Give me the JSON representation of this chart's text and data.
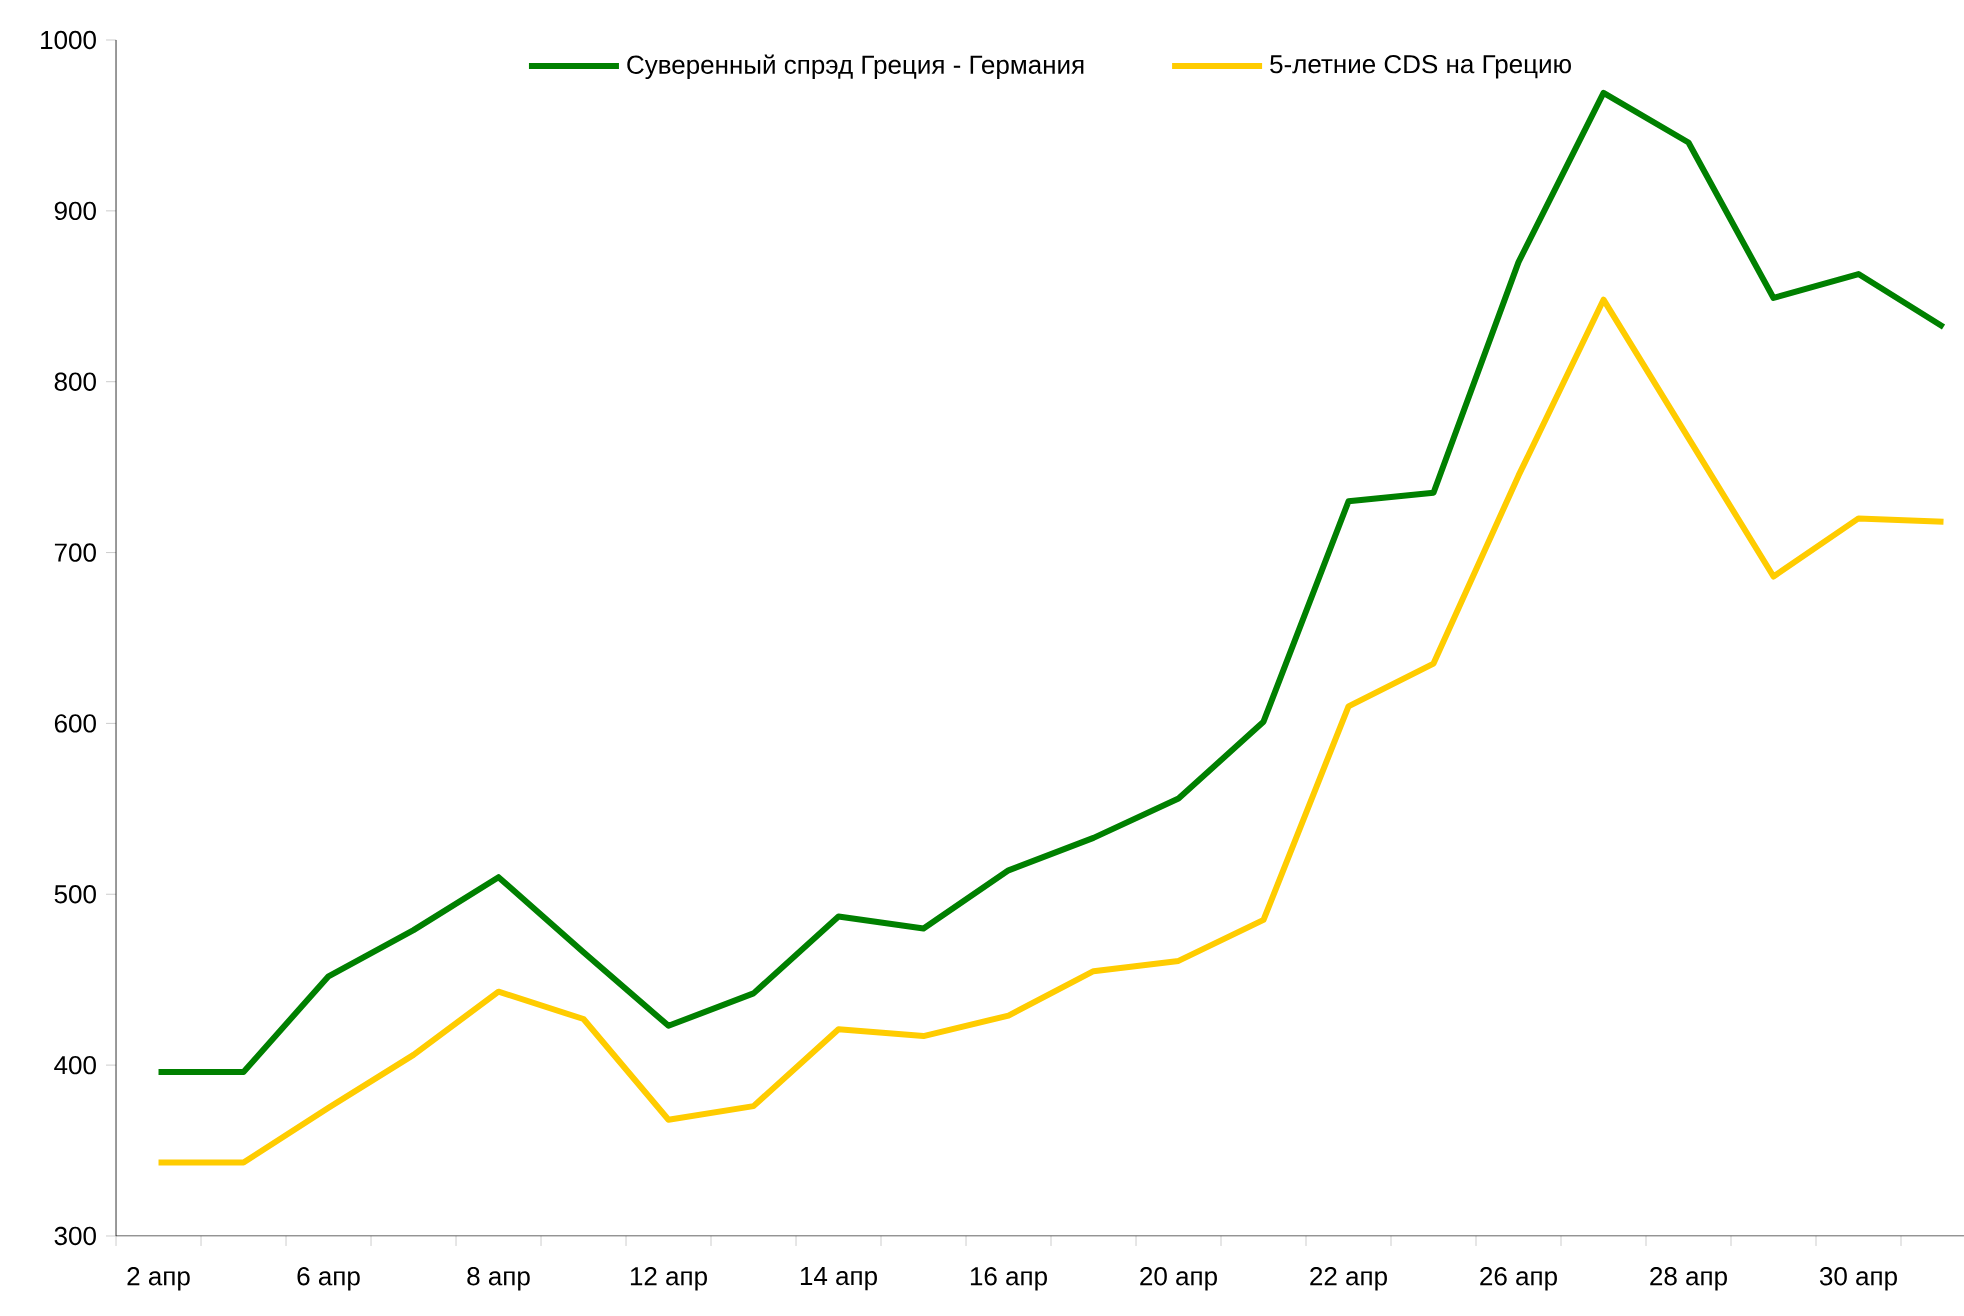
{
  "chart_data": {
    "type": "line",
    "categories": [
      "2 апр",
      null,
      "6 апр",
      null,
      "8 апр",
      null,
      "12 апр",
      null,
      "14 апр",
      null,
      "16 апр",
      null,
      "20 апр",
      null,
      "22 апр",
      null,
      "26 апр",
      null,
      "28 апр",
      null,
      "30 апр",
      null
    ],
    "series": [
      {
        "name": "Суверенный спрэд Греция - Германия",
        "color": "#008000",
        "values": [
          396,
          396,
          452,
          479,
          510,
          466,
          423,
          442,
          487,
          480,
          514,
          533,
          556,
          601,
          730,
          735,
          870,
          969,
          940,
          849,
          863,
          832
        ]
      },
      {
        "name": "5-летние CDS на Грецию",
        "color": "#ffcc00",
        "values": [
          343,
          343,
          375,
          406,
          443,
          427,
          368,
          376,
          421,
          417,
          429,
          455,
          461,
          485,
          610,
          635,
          745,
          848,
          767,
          686,
          720,
          718
        ]
      }
    ],
    "ylim": [
      300,
      1000
    ],
    "yticks": [
      300,
      400,
      500,
      600,
      700,
      800,
      900,
      1000
    ],
    "grid": false,
    "legend": "top",
    "marker": "none",
    "line_style": "solid"
  }
}
